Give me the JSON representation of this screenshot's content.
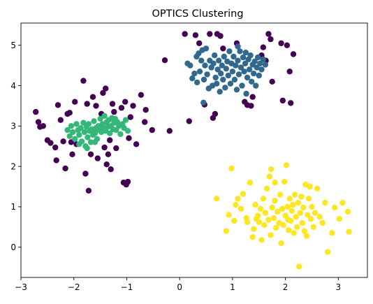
{
  "chart_data": {
    "type": "scatter",
    "title": "OPTICS Clustering",
    "xlabel": "",
    "ylabel": "",
    "xlim": [
      -3.0,
      3.55
    ],
    "ylim": [
      -0.75,
      5.55
    ],
    "xticks": [
      -3,
      -2,
      -1,
      0,
      1,
      2,
      3
    ],
    "yticks": [
      0,
      1,
      2,
      3,
      4,
      5
    ],
    "grid": false,
    "legend": "none",
    "colors": {
      "noise": "#440154",
      "cluster_0": "#31688e",
      "cluster_1": "#35b779",
      "cluster_2": "#fde725"
    },
    "series": [
      {
        "color": "#440154",
        "points": [
          [
            -2.72,
            3.35
          ],
          [
            -2.67,
            3.1
          ],
          [
            -2.64,
            2.98
          ],
          [
            -2.58,
            3.0
          ],
          [
            -2.5,
            2.65
          ],
          [
            -2.44,
            2.58
          ],
          [
            -2.35,
            2.47
          ],
          [
            -2.33,
            2.15
          ],
          [
            -2.3,
            3.52
          ],
          [
            -2.25,
            3.15
          ],
          [
            -2.2,
            2.62
          ],
          [
            -2.16,
            1.95
          ],
          [
            -2.12,
            3.3
          ],
          [
            -2.08,
            3.33
          ],
          [
            -2.05,
            2.6
          ],
          [
            -2.03,
            2.3
          ],
          [
            -1.98,
            3.6
          ],
          [
            -1.95,
            2.55
          ],
          [
            -1.82,
            4.12
          ],
          [
            -1.78,
            1.82
          ],
          [
            -1.75,
            3.55
          ],
          [
            -1.72,
            1.4
          ],
          [
            -1.68,
            2.3
          ],
          [
            -1.64,
            3.72
          ],
          [
            -1.58,
            3.5
          ],
          [
            -1.55,
            2.2
          ],
          [
            -1.48,
            3.3
          ],
          [
            -1.45,
            3.82
          ],
          [
            -1.42,
            2.47
          ],
          [
            -1.4,
            3.93
          ],
          [
            -1.38,
            2.05
          ],
          [
            -1.35,
            2.3
          ],
          [
            -1.32,
            2.65
          ],
          [
            -1.3,
            1.93
          ],
          [
            -1.27,
            3.55
          ],
          [
            -1.24,
            3.35
          ],
          [
            -1.2,
            2.45
          ],
          [
            -1.1,
            3.45
          ],
          [
            -1.06,
            1.6
          ],
          [
            -1.03,
            3.6
          ],
          [
            -1.01,
            1.55
          ],
          [
            -0.98,
            1.62
          ],
          [
            -0.96,
            2.7
          ],
          [
            -0.93,
            3.22
          ],
          [
            -0.88,
            3.5
          ],
          [
            -0.82,
            2.55
          ],
          [
            -0.73,
            3.77
          ],
          [
            -0.66,
            3.1
          ],
          [
            -0.64,
            3.4
          ],
          [
            -0.52,
            2.9
          ],
          [
            -0.28,
            4.63
          ],
          [
            -0.19,
            2.88
          ],
          [
            0.1,
            5.28
          ],
          [
            0.18,
            3.12
          ],
          [
            0.3,
            5.25
          ],
          [
            0.37,
            5.05
          ],
          [
            0.47,
            3.53
          ],
          [
            0.57,
            5.28
          ],
          [
            0.63,
            3.2
          ],
          [
            0.67,
            3.3
          ],
          [
            0.71,
            5.28
          ],
          [
            0.77,
            5.23
          ],
          [
            0.82,
            4.92
          ],
          [
            1.08,
            5.05
          ],
          [
            1.23,
            3.6
          ],
          [
            1.28,
            3.52
          ],
          [
            1.35,
            3.5
          ],
          [
            1.38,
            3.72
          ],
          [
            1.55,
            4.75
          ],
          [
            1.58,
            4.95
          ],
          [
            1.63,
            4.62
          ],
          [
            1.68,
            5.28
          ],
          [
            1.72,
            5.15
          ],
          [
            1.75,
            4.1
          ],
          [
            1.95,
            3.63
          ],
          [
            1.92,
            5.05
          ],
          [
            2.03,
            5.0
          ],
          [
            2.1,
            3.57
          ],
          [
            2.15,
            4.78
          ],
          [
            2.08,
            4.35
          ]
        ]
      },
      {
        "color": "#31688e",
        "points": [
          [
            0.15,
            4.55
          ],
          [
            0.2,
            4.5
          ],
          [
            0.24,
            4.18
          ],
          [
            0.28,
            4.3
          ],
          [
            0.32,
            4.72
          ],
          [
            0.33,
            4.08
          ],
          [
            0.36,
            4.8
          ],
          [
            0.38,
            4.35
          ],
          [
            0.41,
            4.62
          ],
          [
            0.43,
            4.88
          ],
          [
            0.46,
            4.15
          ],
          [
            0.48,
            4.5
          ],
          [
            0.5,
            4.92
          ],
          [
            0.52,
            4.28
          ],
          [
            0.55,
            3.93
          ],
          [
            0.57,
            4.62
          ],
          [
            0.6,
            4.45
          ],
          [
            0.62,
            4.0
          ],
          [
            0.64,
            4.55
          ],
          [
            0.66,
            4.75
          ],
          [
            0.68,
            4.2
          ],
          [
            0.7,
            4.05
          ],
          [
            0.72,
            4.4
          ],
          [
            0.74,
            4.62
          ],
          [
            0.76,
            3.85
          ],
          [
            0.78,
            4.3
          ],
          [
            0.8,
            4.5
          ],
          [
            0.82,
            4.15
          ],
          [
            0.84,
            4.72
          ],
          [
            0.86,
            3.95
          ],
          [
            0.88,
            4.42
          ],
          [
            0.9,
            4.6
          ],
          [
            0.92,
            4.25
          ],
          [
            0.94,
            4.85
          ],
          [
            0.96,
            4.05
          ],
          [
            0.98,
            4.55
          ],
          [
            1.0,
            4.35
          ],
          [
            1.02,
            4.72
          ],
          [
            1.04,
            4.15
          ],
          [
            1.06,
            4.5
          ],
          [
            1.08,
            3.9
          ],
          [
            1.1,
            4.62
          ],
          [
            1.12,
            4.28
          ],
          [
            1.14,
            4.85
          ],
          [
            1.16,
            4.45
          ],
          [
            1.18,
            4.0
          ],
          [
            1.2,
            4.7
          ],
          [
            1.22,
            4.35
          ],
          [
            1.24,
            4.55
          ],
          [
            1.26,
            3.8
          ],
          [
            1.28,
            4.2
          ],
          [
            1.3,
            4.65
          ],
          [
            1.32,
            4.4
          ],
          [
            1.34,
            4.75
          ],
          [
            1.36,
            4.1
          ],
          [
            1.38,
            4.52
          ],
          [
            1.4,
            4.3
          ],
          [
            1.42,
            4.6
          ],
          [
            1.44,
            4.0
          ],
          [
            1.46,
            4.45
          ],
          [
            1.48,
            4.7
          ],
          [
            1.5,
            4.25
          ],
          [
            1.52,
            4.55
          ],
          [
            1.55,
            4.4
          ],
          [
            1.58,
            4.65
          ],
          [
            1.62,
            4.52
          ],
          [
            0.45,
            3.58
          ],
          [
            1.1,
            4.97
          ],
          [
            1.25,
            4.82
          ]
        ]
      },
      {
        "color": "#35b779",
        "points": [
          [
            -2.12,
            2.9
          ],
          [
            -2.08,
            2.75
          ],
          [
            -2.05,
            3.0
          ],
          [
            -2.02,
            2.85
          ],
          [
            -1.98,
            2.68
          ],
          [
            -1.95,
            3.05
          ],
          [
            -1.92,
            2.9
          ],
          [
            -1.9,
            2.78
          ],
          [
            -1.87,
            2.95
          ],
          [
            -1.85,
            2.62
          ],
          [
            -1.82,
            3.08
          ],
          [
            -1.8,
            2.85
          ],
          [
            -1.78,
            2.5
          ],
          [
            -1.76,
            2.98
          ],
          [
            -1.74,
            2.72
          ],
          [
            -1.72,
            3.05
          ],
          [
            -1.7,
            2.88
          ],
          [
            -1.68,
            2.6
          ],
          [
            -1.66,
            2.92
          ],
          [
            -1.64,
            2.78
          ],
          [
            -1.62,
            3.12
          ],
          [
            -1.6,
            2.82
          ],
          [
            -1.58,
            2.95
          ],
          [
            -1.56,
            2.68
          ],
          [
            -1.54,
            3.0
          ],
          [
            -1.52,
            2.9
          ],
          [
            -1.5,
            3.18
          ],
          [
            -1.48,
            2.85
          ],
          [
            -1.46,
            3.05
          ],
          [
            -1.44,
            2.95
          ],
          [
            -1.42,
            3.25
          ],
          [
            -1.4,
            2.88
          ],
          [
            -1.38,
            3.1
          ],
          [
            -1.36,
            2.98
          ],
          [
            -1.34,
            3.15
          ],
          [
            -1.32,
            2.82
          ],
          [
            -1.3,
            3.0
          ],
          [
            -1.28,
            3.2
          ],
          [
            -1.26,
            2.92
          ],
          [
            -1.24,
            3.08
          ],
          [
            -1.22,
            3.18
          ],
          [
            -1.2,
            2.9
          ],
          [
            -1.18,
            3.1
          ],
          [
            -1.15,
            3.0
          ],
          [
            -1.12,
            2.8
          ],
          [
            -1.08,
            3.05
          ],
          [
            -1.05,
            2.95
          ],
          [
            -1.02,
            3.15
          ],
          [
            -0.98,
            2.88
          ],
          [
            -1.75,
            2.45
          ],
          [
            -1.9,
            2.55
          ],
          [
            -1.6,
            2.6
          ]
        ]
      },
      {
        "color": "#fde725",
        "points": [
          [
            0.7,
            1.2
          ],
          [
            0.88,
            0.4
          ],
          [
            0.93,
            0.8
          ],
          [
            0.98,
            1.95
          ],
          [
            1.03,
            0.65
          ],
          [
            1.06,
            1.05
          ],
          [
            1.1,
            1.2
          ],
          [
            1.16,
            0.95
          ],
          [
            1.2,
            1.32
          ],
          [
            1.26,
            0.72
          ],
          [
            1.28,
            0.62
          ],
          [
            1.33,
            1.6
          ],
          [
            1.38,
            0.25
          ],
          [
            1.4,
            0.45
          ],
          [
            1.43,
            1.05
          ],
          [
            1.48,
            0.78
          ],
          [
            1.5,
            0.62
          ],
          [
            1.53,
            0.95
          ],
          [
            1.55,
            0.18
          ],
          [
            1.58,
            1.2
          ],
          [
            1.6,
            0.55
          ],
          [
            1.62,
            0.85
          ],
          [
            1.65,
            1.45
          ],
          [
            1.68,
            0.68
          ],
          [
            1.7,
            1.75
          ],
          [
            1.72,
            0.3
          ],
          [
            1.75,
            0.98
          ],
          [
            1.78,
            0.72
          ],
          [
            1.8,
            1.15
          ],
          [
            1.82,
            0.48
          ],
          [
            1.85,
            0.88
          ],
          [
            1.88,
            0.6
          ],
          [
            1.9,
            1.3
          ],
          [
            1.92,
            0.1
          ],
          [
            1.94,
            0.95
          ],
          [
            1.96,
            0.55
          ],
          [
            1.98,
            1.62
          ],
          [
            2.0,
            0.78
          ],
          [
            2.02,
            2.03
          ],
          [
            2.04,
            1.0
          ],
          [
            2.06,
            0.42
          ],
          [
            2.08,
            1.2
          ],
          [
            2.1,
            0.65
          ],
          [
            2.12,
            0.9
          ],
          [
            2.14,
            1.05
          ],
          [
            2.16,
            0.35
          ],
          [
            2.18,
            1.3
          ],
          [
            2.2,
            0.75
          ],
          [
            2.22,
            0.5
          ],
          [
            2.24,
            1.1
          ],
          [
            2.26,
            -0.48
          ],
          [
            2.28,
            0.85
          ],
          [
            2.3,
            1.25
          ],
          [
            2.32,
            0.6
          ],
          [
            2.34,
            0.98
          ],
          [
            2.36,
            0.4
          ],
          [
            2.38,
            1.55
          ],
          [
            2.4,
            0.28
          ],
          [
            2.42,
            0.8
          ],
          [
            2.44,
            1.2
          ],
          [
            2.46,
            1.5
          ],
          [
            2.48,
            0.7
          ],
          [
            2.5,
            1.0
          ],
          [
            2.53,
            0.5
          ],
          [
            2.56,
            0.85
          ],
          [
            2.6,
            1.45
          ],
          [
            2.65,
            0.75
          ],
          [
            2.7,
            0.6
          ],
          [
            2.75,
            1.1
          ],
          [
            2.8,
            -0.12
          ],
          [
            2.88,
            0.35
          ],
          [
            2.93,
            0.98
          ],
          [
            3.02,
            0.7
          ],
          [
            3.08,
            1.1
          ],
          [
            3.18,
            0.88
          ],
          [
            3.2,
            0.38
          ],
          [
            1.73,
            1.93
          ],
          [
            1.8,
            1.6
          ],
          [
            2.05,
            0.68
          ],
          [
            1.45,
            0.7
          ]
        ]
      }
    ]
  }
}
